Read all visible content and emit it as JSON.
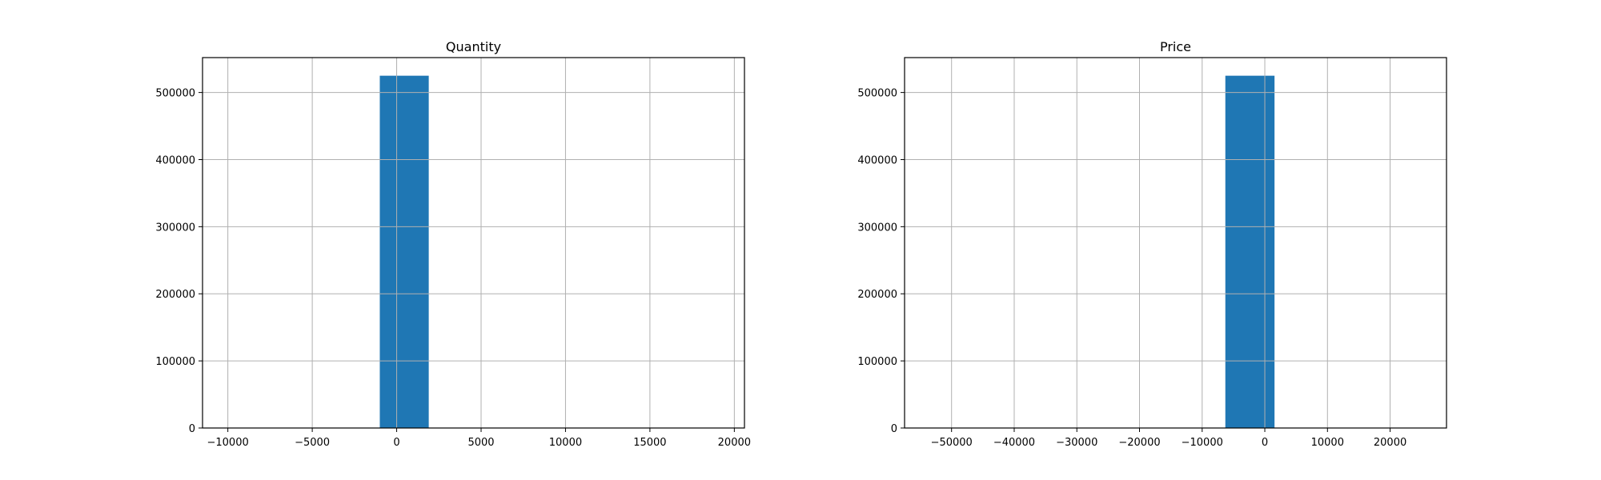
{
  "figure": {
    "background": "#ffffff",
    "bar_color": "#1f77b4",
    "grid_color": "#b0b0b0"
  },
  "chart_data": [
    {
      "type": "bar",
      "title": "Quantity",
      "xlabel": "",
      "ylabel": "",
      "grid": true,
      "xlim": [
        -11500,
        20600
      ],
      "ylim": [
        0,
        552000
      ],
      "xticks": [
        -10000,
        -5000,
        0,
        5000,
        10000,
        15000,
        20000
      ],
      "xtick_labels": [
        "−10000",
        "−5000",
        "0",
        "5000",
        "10000",
        "15000",
        "20000"
      ],
      "yticks": [
        0,
        100000,
        200000,
        300000,
        400000,
        500000
      ],
      "ytick_labels": [
        "0",
        "100000",
        "200000",
        "300000",
        "400000",
        "500000"
      ],
      "bins": [
        {
          "x0": -1000,
          "x1": 1900,
          "count": 525000
        }
      ]
    },
    {
      "type": "bar",
      "title": "Price",
      "xlabel": "",
      "ylabel": "",
      "grid": true,
      "xlim": [
        -57500,
        29000
      ],
      "ylim": [
        0,
        552000
      ],
      "xticks": [
        -50000,
        -40000,
        -30000,
        -20000,
        -10000,
        0,
        10000,
        20000
      ],
      "xtick_labels": [
        "−50000",
        "−40000",
        "−30000",
        "−20000",
        "−10000",
        "0",
        "10000",
        "20000"
      ],
      "yticks": [
        0,
        100000,
        200000,
        300000,
        400000,
        500000
      ],
      "ytick_labels": [
        "0",
        "100000",
        "200000",
        "300000",
        "400000",
        "500000"
      ],
      "bins": [
        {
          "x0": -6300,
          "x1": 1550,
          "count": 525000
        }
      ]
    }
  ]
}
